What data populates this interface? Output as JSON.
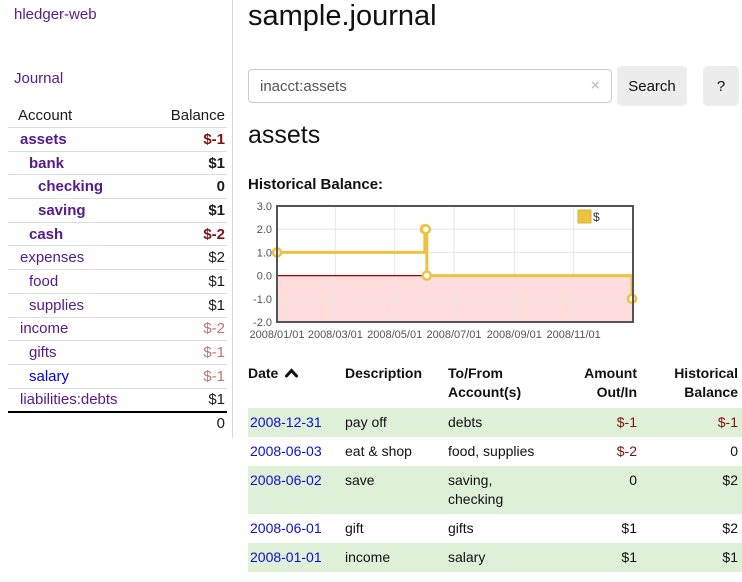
{
  "sidebar": {
    "brand": "hledger-web",
    "nav": [
      {
        "label": "Journal"
      }
    ],
    "accounts_table": {
      "headers": {
        "account": "Account",
        "balance": "Balance"
      },
      "rows": [
        {
          "name": "assets",
          "depth": 0,
          "bold": true,
          "link_color": "purple",
          "balance": "$-1",
          "balance_style": "neg-strong"
        },
        {
          "name": "bank",
          "depth": 1,
          "bold": true,
          "link_color": "purple",
          "balance": "$1",
          "balance_style": "pos"
        },
        {
          "name": "checking",
          "depth": 2,
          "bold": true,
          "link_color": "purple",
          "balance": "0",
          "balance_style": "pos"
        },
        {
          "name": "saving",
          "depth": 2,
          "bold": true,
          "link_color": "purple",
          "balance": "$1",
          "balance_style": "pos"
        },
        {
          "name": "cash",
          "depth": 1,
          "bold": true,
          "link_color": "purple",
          "balance": "$-2",
          "balance_style": "neg-strong"
        },
        {
          "name": "expenses",
          "depth": 0,
          "bold": false,
          "link_color": "purple",
          "balance": "$2",
          "balance_style": "pos"
        },
        {
          "name": "food",
          "depth": 1,
          "bold": false,
          "link_color": "purple",
          "balance": "$1",
          "balance_style": "pos"
        },
        {
          "name": "supplies",
          "depth": 1,
          "bold": false,
          "link_color": "purple",
          "balance": "$1",
          "balance_style": "pos"
        },
        {
          "name": "income",
          "depth": 0,
          "bold": false,
          "link_color": "purple",
          "balance": "$-2",
          "balance_style": "neg-muted"
        },
        {
          "name": "gifts",
          "depth": 1,
          "bold": false,
          "link_color": "purple",
          "balance": "$-1",
          "balance_style": "neg-muted"
        },
        {
          "name": "salary",
          "depth": 1,
          "bold": false,
          "link_color": "blue",
          "balance": "$-1",
          "balance_style": "neg-muted"
        },
        {
          "name": "liabilities:debts",
          "depth": 0,
          "bold": false,
          "link_color": "purple",
          "balance": "$1",
          "balance_style": "pos"
        }
      ],
      "total": "0"
    }
  },
  "header": {
    "title": "sample.journal"
  },
  "search": {
    "value": "inacct:assets",
    "clear_icon": "×",
    "button_label": "Search",
    "help_label": "?"
  },
  "account_page": {
    "title": "assets",
    "chart_label": "Historical Balance:"
  },
  "chart_data": {
    "type": "line",
    "title": "Historical Balance:",
    "series": [
      {
        "name": "$",
        "color": "#edc240",
        "step": true,
        "points": [
          {
            "x": "2008-01-01",
            "y": 1
          },
          {
            "x": "2008-06-01",
            "y": 2
          },
          {
            "x": "2008-06-02",
            "y": 2
          },
          {
            "x": "2008-06-03",
            "y": 0
          },
          {
            "x": "2008-12-31",
            "y": -1
          }
        ]
      }
    ],
    "ylim": [
      -2,
      3
    ],
    "yticks": [
      3.0,
      2.0,
      1.0,
      0.0,
      -1.0,
      -2.0
    ],
    "xticks": [
      "2008/01/01",
      "2008/03/01",
      "2008/05/01",
      "2008/07/01",
      "2008/09/01",
      "2008/11/01"
    ],
    "x_epoch": "2008-01-01",
    "x_total_days": 366,
    "grid": true,
    "negative_region_fill": "#ffdddd",
    "zero_line_color": "#a00000",
    "legend": {
      "label": "$",
      "position": "top-right"
    }
  },
  "register_table": {
    "headers": {
      "date": "Date",
      "description": "Description",
      "account": "To/From\nAccount(s)",
      "amount": "Amount\nOut/In",
      "balance": "Historical\nBalance"
    },
    "rows": [
      {
        "date": "2008-12-31",
        "description": "pay off",
        "account": "debts",
        "amount": "$-1",
        "amount_neg": true,
        "balance": "$-1",
        "balance_neg": true,
        "highlight": true
      },
      {
        "date": "2008-06-03",
        "description": "eat & shop",
        "account": "food, supplies",
        "amount": "$-2",
        "amount_neg": true,
        "balance": "0",
        "balance_neg": false,
        "highlight": false
      },
      {
        "date": "2008-06-02",
        "description": "save",
        "account": "saving,\nchecking",
        "amount": "0",
        "amount_neg": false,
        "balance": "$2",
        "balance_neg": false,
        "highlight": true
      },
      {
        "date": "2008-06-01",
        "description": "gift",
        "account": "gifts",
        "amount": "$1",
        "amount_neg": false,
        "balance": "$2",
        "balance_neg": false,
        "highlight": false
      },
      {
        "date": "2008-01-01",
        "description": "income",
        "account": "salary",
        "amount": "$1",
        "amount_neg": false,
        "balance": "$1",
        "balance_neg": false,
        "highlight": true
      }
    ]
  },
  "colors": {
    "link_purple": "#551A8B",
    "link_blue": "#0000EE",
    "negative_strong": "#7e1313",
    "negative_muted": "#b97676",
    "row_highlight_green": "#dff0d8",
    "series_gold": "#edc240",
    "negative_region_pink": "#ffdddd",
    "zero_line_red": "#a00000",
    "chart_border": "#545454",
    "gridline": "#e6e6e6"
  }
}
